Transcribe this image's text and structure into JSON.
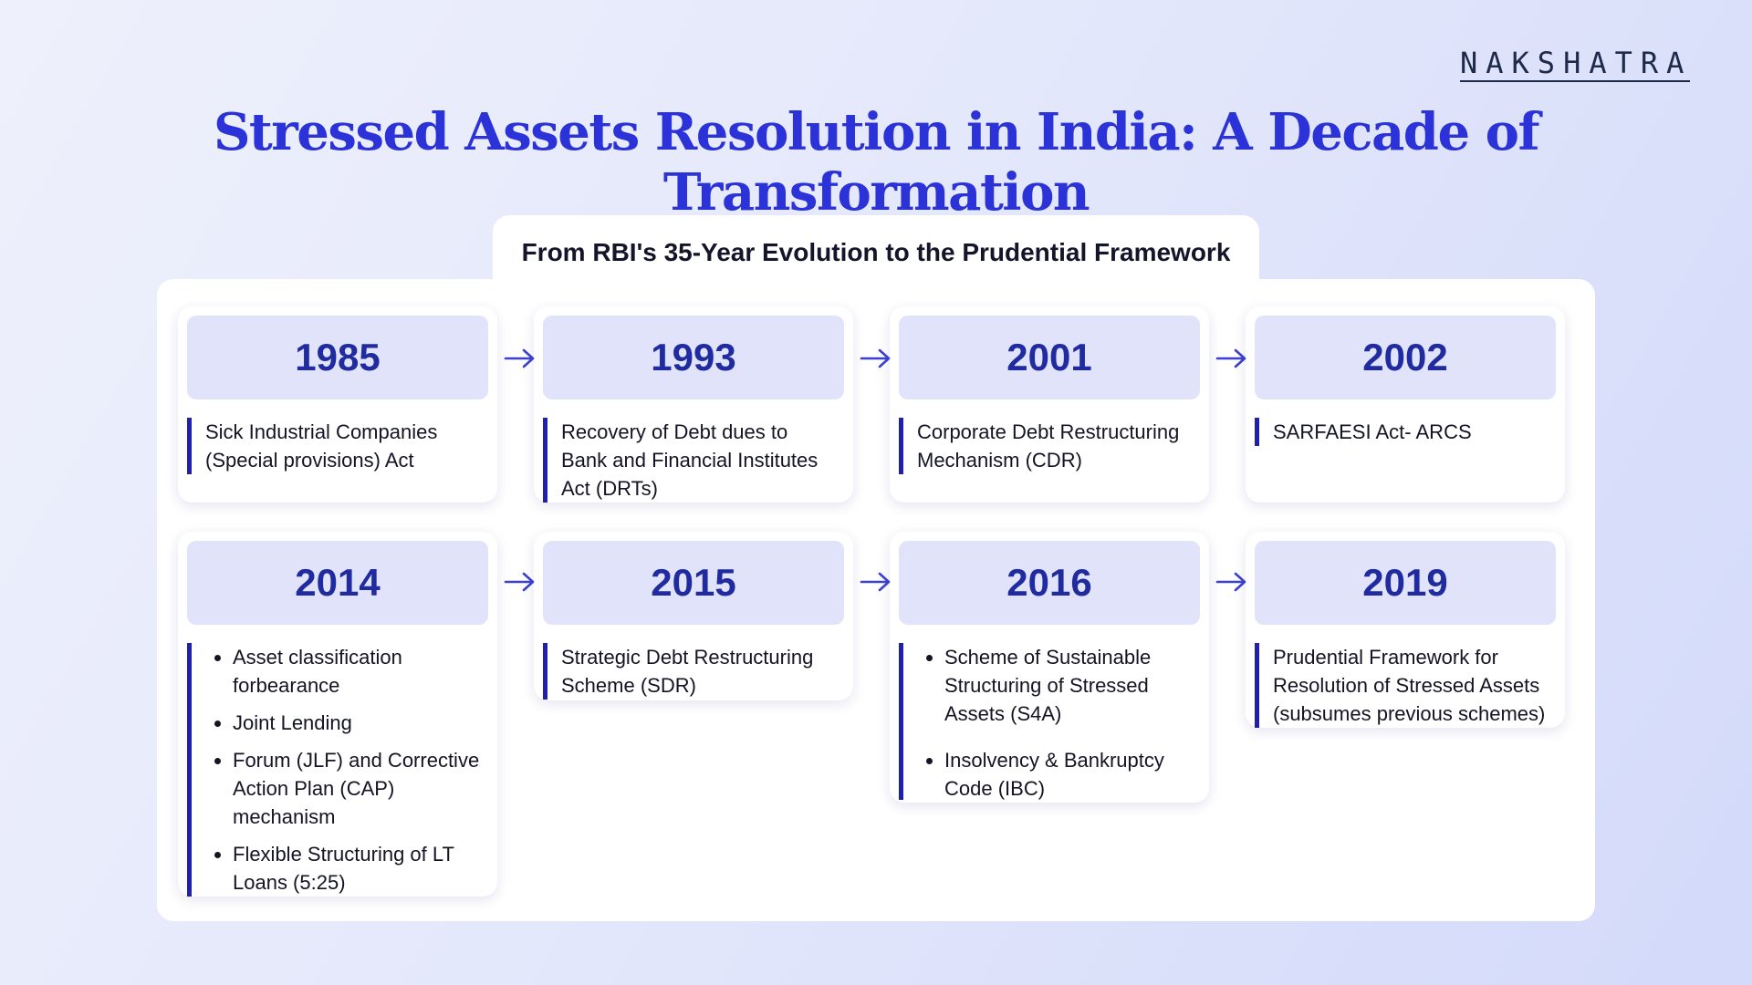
{
  "brand": {
    "logo_text": "NAKSHATRA"
  },
  "title": "Stressed Assets Resolution in India: A Decade of Transformation",
  "panel": {
    "heading": "From RBI's 35-Year Evolution to the Prudential Framework"
  },
  "milestones": [
    {
      "year": "1985",
      "text": "Sick Industrial Companies (Special provisions) Act"
    },
    {
      "year": "1993",
      "text": "Recovery of Debt dues to Bank and Financial Institutes Act (DRTs)"
    },
    {
      "year": "2001",
      "text": "Corporate Debt Restructuring Mechanism (CDR)"
    },
    {
      "year": "2002",
      "text": "SARFAESI Act- ARCS"
    },
    {
      "year": "2014",
      "bullets": [
        "Asset classification forbearance",
        "Joint Lending",
        "Forum (JLF) and Corrective Action Plan (CAP) mechanism",
        "Flexible Structuring of LT Loans (5:25)"
      ]
    },
    {
      "year": "2015",
      "text": "Strategic Debt Restructuring Scheme (SDR)"
    },
    {
      "year": "2016",
      "bullets": [
        "Scheme of Sustainable Structuring of Stressed Assets (S4A)",
        "Insolvency & Bankruptcy Code (IBC)"
      ]
    },
    {
      "year": "2019",
      "text": "Prudential Framework for Resolution of Stressed Assets (subsumes previous schemes)"
    }
  ],
  "colors": {
    "title": "#2b32d8",
    "year_text": "#1f2b9e",
    "year_box": "#e1e3fb",
    "accent_bar": "#2120a8",
    "arrow": "#3a3fcf"
  },
  "icons": {
    "connector": "arrow-right-icon"
  }
}
